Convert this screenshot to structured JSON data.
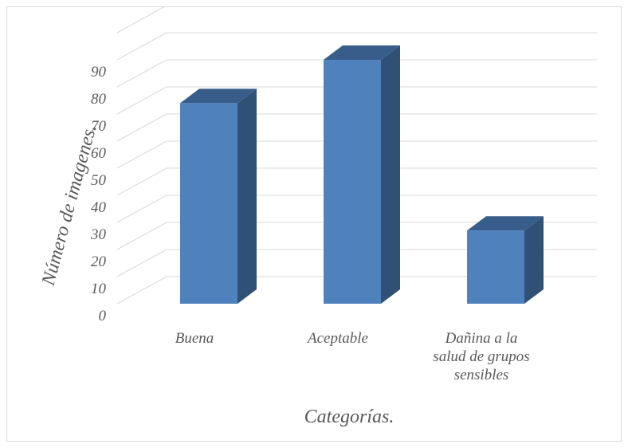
{
  "chart_data": {
    "type": "bar",
    "style": "3d-column",
    "categories": [
      "Buena",
      "Aceptable",
      "Dañina a la salud de grupos sensibles"
    ],
    "category_lines": [
      [
        "Buena"
      ],
      [
        "Aceptable"
      ],
      [
        "Dañina a la",
        "salud de grupos",
        "sensibles"
      ]
    ],
    "values": [
      74,
      90,
      27
    ],
    "title": "",
    "xlabel": "Categorías.",
    "ylabel": "Número de imagenes.",
    "ylim": [
      0,
      90
    ],
    "ytick_labels": [
      "0",
      "10",
      "20",
      "30",
      "40",
      "50",
      "60",
      "70",
      "80",
      "90"
    ],
    "grid": true,
    "legend": "none",
    "colors": {
      "bar_front": "#4f81bd",
      "bar_side": "#2f5177",
      "bar_top": "#385d8a",
      "grid": "#d9d9d9",
      "text": "#595959"
    }
  }
}
